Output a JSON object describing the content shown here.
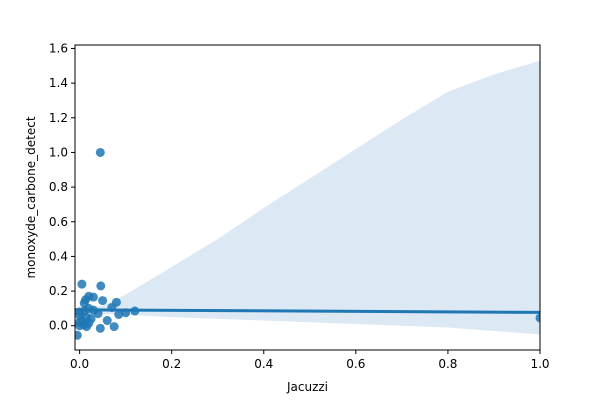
{
  "chart_data": {
    "type": "scatter",
    "xlabel": "Jacuzzi",
    "ylabel": "monoxyde_carbone_detect",
    "xlim": [
      -0.01,
      1.0
    ],
    "ylim": [
      -0.14,
      1.62
    ],
    "x_ticks": [
      0.0,
      0.2,
      0.4,
      0.6,
      0.8,
      1.0
    ],
    "x_tick_labels": [
      "0.0",
      "0.2",
      "0.4",
      "0.6",
      "0.8",
      "1.0"
    ],
    "y_ticks": [
      0.0,
      0.2,
      0.4,
      0.6,
      0.8,
      1.0,
      1.2,
      1.4,
      1.6
    ],
    "y_tick_labels": [
      "0.0",
      "0.2",
      "0.4",
      "0.6",
      "0.8",
      "1.0",
      "1.2",
      "1.4",
      "1.6"
    ],
    "grid": false,
    "legend": "none",
    "colors": {
      "points": "#1f77b4",
      "regression_line": "#1f77b4",
      "confidence_band": "#dce8f3"
    },
    "points": [
      {
        "x": 0.045,
        "y": 1.0
      },
      {
        "x": 0.005,
        "y": 0.24
      },
      {
        "x": 0.046,
        "y": 0.23
      },
      {
        "x": 0.02,
        "y": 0.17
      },
      {
        "x": 0.03,
        "y": 0.165
      },
      {
        "x": 0.013,
        "y": 0.15
      },
      {
        "x": 0.05,
        "y": 0.145
      },
      {
        "x": 0.01,
        "y": 0.13
      },
      {
        "x": 0.08,
        "y": 0.135
      },
      {
        "x": 0.07,
        "y": 0.105
      },
      {
        "x": 0.02,
        "y": 0.1
      },
      {
        "x": 0.0,
        "y": 0.08
      },
      {
        "x": 0.01,
        "y": 0.085
      },
      {
        "x": 0.03,
        "y": 0.09
      },
      {
        "x": 0.12,
        "y": 0.085
      },
      {
        "x": 0.1,
        "y": 0.075
      },
      {
        "x": 0.085,
        "y": 0.065
      },
      {
        "x": 0.04,
        "y": 0.07
      },
      {
        "x": 0.0,
        "y": 0.06
      },
      {
        "x": 0.015,
        "y": 0.05
      },
      {
        "x": 0.025,
        "y": 0.04
      },
      {
        "x": 0.005,
        "y": 0.03
      },
      {
        "x": 0.06,
        "y": 0.03
      },
      {
        "x": 0.0,
        "y": 0.02
      },
      {
        "x": 0.02,
        "y": 0.015
      },
      {
        "x": 0.01,
        "y": 0.005
      },
      {
        "x": 0.0,
        "y": 0.0
      },
      {
        "x": 0.015,
        "y": -0.005
      },
      {
        "x": 0.075,
        "y": -0.005
      },
      {
        "x": 0.045,
        "y": -0.015
      },
      {
        "x": -0.005,
        "y": -0.055
      },
      {
        "x": 1.0,
        "y": 0.045
      }
    ],
    "regression": {
      "x": [
        -0.01,
        1.0
      ],
      "y": [
        0.092,
        0.077
      ]
    },
    "confidence_band": {
      "x": [
        -0.01,
        0.05,
        0.1,
        0.2,
        0.3,
        0.4,
        0.5,
        0.6,
        0.7,
        0.8,
        0.9,
        1.0
      ],
      "upper": [
        0.1,
        0.115,
        0.18,
        0.34,
        0.5,
        0.68,
        0.85,
        1.02,
        1.19,
        1.35,
        1.45,
        1.53
      ],
      "lower": [
        0.07,
        0.068,
        0.063,
        0.05,
        0.04,
        0.03,
        0.02,
        0.01,
        0.0,
        -0.01,
        -0.03,
        -0.05
      ]
    }
  }
}
